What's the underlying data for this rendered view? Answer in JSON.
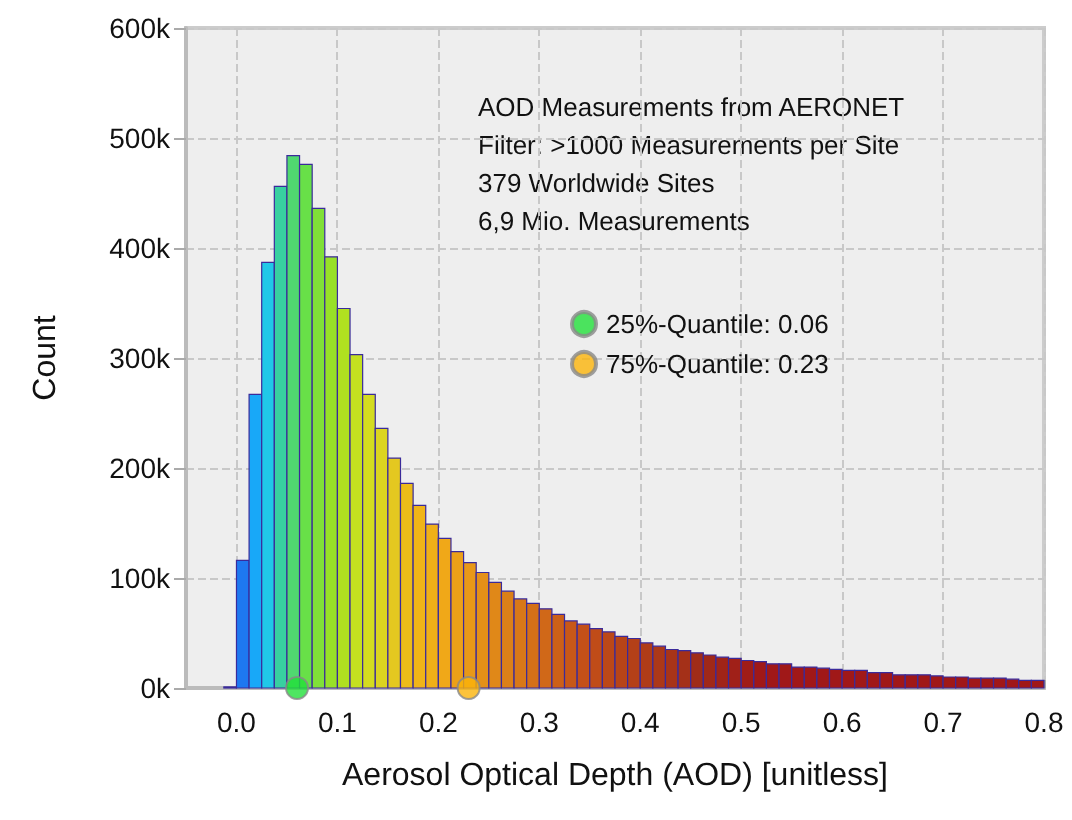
{
  "chart_data": {
    "type": "histogram",
    "xlabel": "Aerosol Optical Depth (AOD) [unitless]",
    "ylabel": "Count",
    "annotations": [
      "AOD Measurements from AERONET",
      "Filter: >1000 Measurements per Site",
      "379 Worldwide Sites",
      "6,9 Mio. Measurements"
    ],
    "bins": [
      -0.0125,
      0,
      0.0125,
      0.025,
      0.0375,
      0.05,
      0.0625,
      0.075,
      0.0875,
      0.1,
      0.1125,
      0.125,
      0.1375,
      0.15,
      0.1625,
      0.175,
      0.1875,
      0.2,
      0.2125,
      0.225,
      0.2375,
      0.25,
      0.2625,
      0.275,
      0.2875,
      0.3,
      0.3125,
      0.325,
      0.3375,
      0.35,
      0.3625,
      0.375,
      0.3875,
      0.4,
      0.4125,
      0.425,
      0.4375,
      0.45,
      0.4625,
      0.475,
      0.4875,
      0.5,
      0.5125,
      0.525,
      0.5375,
      0.55,
      0.5625,
      0.575,
      0.5875,
      0.6,
      0.6125,
      0.625,
      0.6375,
      0.65,
      0.6625,
      0.675,
      0.6875,
      0.7,
      0.7125,
      0.725,
      0.7375,
      0.75,
      0.7625,
      0.775,
      0.7875,
      0.8
    ],
    "values": [
      1000,
      116000,
      267000,
      387000,
      456000,
      484000,
      476000,
      436000,
      392000,
      345000,
      303000,
      267000,
      236000,
      209000,
      186000,
      166000,
      149000,
      136000,
      124000,
      114000,
      105000,
      96000,
      88000,
      81000,
      77000,
      72000,
      67000,
      61000,
      58000,
      54000,
      51000,
      47000,
      45000,
      41000,
      38000,
      35000,
      34000,
      32000,
      30000,
      28000,
      27000,
      25000,
      24000,
      22000,
      22000,
      19000,
      19000,
      18000,
      17000,
      16000,
      16000,
      14000,
      14000,
      12000,
      12000,
      12000,
      11000,
      10000,
      10000,
      9000,
      9000,
      9000,
      8000,
      7000,
      7000
    ],
    "colors": [
      "#2a4fd8",
      "#1e78f0",
      "#18a8f8",
      "#20c8e8",
      "#38d0a0",
      "#50d870",
      "#68e048",
      "#80e038",
      "#98e028",
      "#b0e020",
      "#c4e020",
      "#d4dc20",
      "#dcd420",
      "#e4c820",
      "#ecbc18",
      "#f0b418",
      "#f0b018",
      "#f0a818",
      "#eca018",
      "#e89818",
      "#e49018",
      "#e08818",
      "#dc8018",
      "#d87818",
      "#d47018",
      "#d06818",
      "#cc6018",
      "#c85818",
      "#c45018",
      "#c04c18",
      "#bc4818",
      "#b84418",
      "#b44018",
      "#b03c18",
      "#ac3818",
      "#a83418",
      "#a43018",
      "#a02c18",
      "#a02818",
      "#a02418",
      "#a02018",
      "#a01c18",
      "#a01818",
      "#a01818",
      "#a01818",
      "#a01818",
      "#a01818",
      "#a01818",
      "#a01818",
      "#a01818",
      "#a01818",
      "#a01818",
      "#a01818",
      "#a01818",
      "#a01818",
      "#a01818",
      "#a01818",
      "#a01818",
      "#a01818",
      "#a01818",
      "#a01818",
      "#a01818",
      "#a01818",
      "#a01818",
      "#a01818"
    ],
    "series": [
      {
        "type": "scatter",
        "name": "25%-Quantile: 0.06",
        "color": "#22e03a",
        "x": [
          0.06
        ],
        "values": [
          0
        ]
      },
      {
        "type": "scatter",
        "name": "75%-Quantile: 0.23",
        "color": "#fbb40a",
        "x": [
          0.23
        ],
        "values": [
          0
        ]
      }
    ],
    "marker": "circle",
    "legend": "center",
    "grid": true,
    "xlim": [
      -0.05,
      0.8
    ],
    "xticks": [
      {
        "value": 0,
        "label": "0.0"
      },
      {
        "value": 0.1,
        "label": "0.1"
      },
      {
        "value": 0.2,
        "label": "0.2"
      },
      {
        "value": 0.3,
        "label": "0.3"
      },
      {
        "value": 0.4,
        "label": "0.4"
      },
      {
        "value": 0.5,
        "label": "0.5"
      },
      {
        "value": 0.6,
        "label": "0.6"
      },
      {
        "value": 0.7,
        "label": "0.7"
      },
      {
        "value": 0.8,
        "label": "0.8"
      }
    ],
    "ylim": [
      0,
      600000
    ],
    "yticks": [
      {
        "value": 0,
        "label": "0k"
      },
      {
        "value": 100000,
        "label": "100k"
      },
      {
        "value": 200000,
        "label": "200k"
      },
      {
        "value": 300000,
        "label": "300k"
      },
      {
        "value": 400000,
        "label": "400k"
      },
      {
        "value": 500000,
        "label": "500k"
      },
      {
        "value": 600000,
        "label": "600k"
      }
    ]
  }
}
